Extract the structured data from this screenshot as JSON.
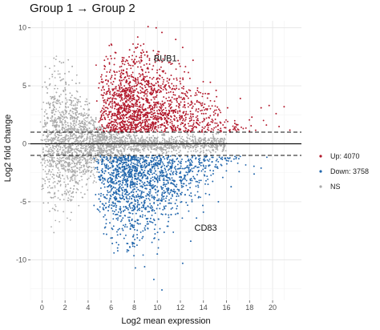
{
  "title": "Group 1 → Group 2",
  "chart_data": {
    "type": "scatter",
    "subtype": "MA plot",
    "title": "Group 1 → Group 2",
    "xlabel": "Log2 mean expression",
    "ylabel": "Log2 fold change",
    "xlim": [
      -1,
      22.5
    ],
    "ylim": [
      -13.5,
      10.6
    ],
    "x_ticks": [
      0,
      2,
      4,
      6,
      8,
      10,
      12,
      14,
      16,
      18,
      20
    ],
    "y_ticks": [
      -10,
      -5,
      0,
      5,
      10
    ],
    "grid": true,
    "reference_lines": [
      {
        "y": 0,
        "style": "solid"
      },
      {
        "y": 1,
        "style": "dashed"
      },
      {
        "y": -1,
        "style": "dashed"
      }
    ],
    "series": [
      {
        "name": "Up: 4070",
        "color": "#b2182b",
        "count": 4070
      },
      {
        "name": "Down: 3758",
        "color": "#2166ac",
        "count": 3758
      },
      {
        "name": "NS",
        "color": "#aaaaaa"
      }
    ],
    "annotations": [
      {
        "label": "BUB1",
        "x": 10.7,
        "y": 7.4
      },
      {
        "label": "CD83",
        "x": 14.2,
        "y": -7.2
      }
    ],
    "legend_position": "right",
    "highlight_points": {
      "up": [
        [
          9.2,
          10.1
        ],
        [
          9.9,
          10.0
        ],
        [
          10.4,
          9.6
        ],
        [
          8.3,
          9.2
        ],
        [
          11.6,
          9.0
        ],
        [
          7.6,
          8.1
        ],
        [
          12.2,
          8.3
        ],
        [
          11.0,
          7.0
        ],
        [
          8.8,
          7.9
        ],
        [
          13.1,
          7.2
        ],
        [
          7.1,
          7.4
        ],
        [
          11.9,
          6.9
        ],
        [
          14.6,
          5.3
        ],
        [
          15.1,
          4.6
        ],
        [
          17.2,
          3.9
        ],
        [
          19.0,
          3.1
        ],
        [
          19.7,
          3.3
        ],
        [
          21.0,
          3.2
        ],
        [
          20.3,
          2.6
        ],
        [
          18.2,
          2.3
        ],
        [
          16.1,
          3.1
        ]
      ],
      "down": [
        [
          6.8,
          -7.8
        ],
        [
          7.5,
          -9.2
        ],
        [
          8.9,
          -10.6
        ],
        [
          9.7,
          -11.7
        ],
        [
          10.4,
          -12.6
        ],
        [
          11.6,
          -13.4
        ],
        [
          12.2,
          -10.3
        ],
        [
          8.1,
          -10.7
        ],
        [
          10.0,
          -9.5
        ],
        [
          6.1,
          -8.6
        ],
        [
          5.6,
          -7.8
        ],
        [
          12.9,
          -8.4
        ],
        [
          13.4,
          -6.4
        ],
        [
          15.3,
          -5.0
        ],
        [
          16.4,
          -3.7
        ],
        [
          17.1,
          -2.4
        ],
        [
          18.4,
          -2.6
        ],
        [
          19.0,
          -2.1
        ],
        [
          14.0,
          -5.9
        ]
      ]
    }
  }
}
